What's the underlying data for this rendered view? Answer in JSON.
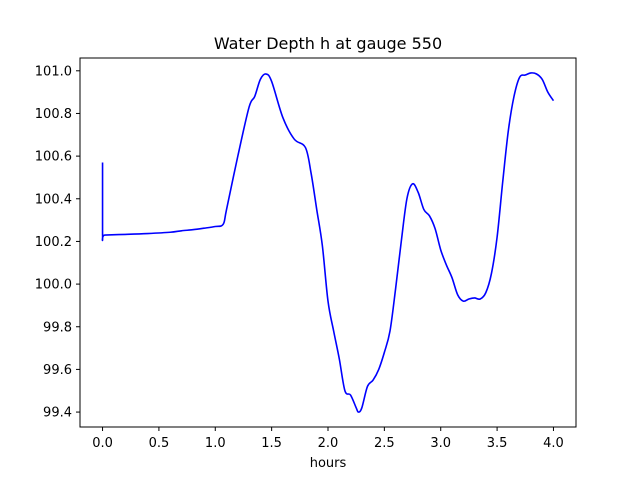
{
  "chart_data": {
    "type": "line",
    "title": "Water Depth h at gauge 550",
    "xlabel": "hours",
    "ylabel": "",
    "xlim": [
      -0.2,
      4.2
    ],
    "ylim": [
      99.33,
      101.06
    ],
    "x_ticks": [
      0.0,
      0.5,
      1.0,
      1.5,
      2.0,
      2.5,
      3.0,
      3.5,
      4.0
    ],
    "x_tick_labels": [
      "0.0",
      "0.5",
      "1.0",
      "1.5",
      "2.0",
      "2.5",
      "3.0",
      "3.5",
      "4.0"
    ],
    "y_ticks": [
      99.4,
      99.6,
      99.8,
      100.0,
      100.2,
      100.4,
      100.6,
      100.8,
      101.0
    ],
    "y_tick_labels": [
      "99.4",
      "99.6",
      "99.8",
      "100.0",
      "100.2",
      "100.4",
      "100.6",
      "100.8",
      "101.0"
    ],
    "grid": false,
    "series": [
      {
        "color": "#0000ff",
        "x": [
          0.0,
          0.0,
          0.02,
          0.2,
          0.4,
          0.6,
          0.7,
          0.8,
          0.9,
          1.0,
          1.07,
          1.1,
          1.2,
          1.3,
          1.35,
          1.4,
          1.45,
          1.5,
          1.6,
          1.7,
          1.8,
          1.85,
          1.9,
          1.95,
          2.0,
          2.05,
          2.1,
          2.15,
          2.2,
          2.25,
          2.27,
          2.3,
          2.35,
          2.4,
          2.45,
          2.5,
          2.55,
          2.6,
          2.65,
          2.7,
          2.75,
          2.8,
          2.85,
          2.9,
          2.95,
          3.0,
          3.05,
          3.1,
          3.15,
          3.2,
          3.25,
          3.3,
          3.35,
          3.4,
          3.45,
          3.5,
          3.55,
          3.6,
          3.65,
          3.7,
          3.75,
          3.8,
          3.85,
          3.9,
          3.95,
          4.0
        ],
        "y": [
          100.57,
          100.23,
          100.23,
          100.233,
          100.237,
          100.243,
          100.25,
          100.255,
          100.262,
          100.27,
          100.28,
          100.35,
          100.6,
          100.83,
          100.88,
          100.96,
          100.985,
          100.95,
          100.78,
          100.68,
          100.64,
          100.52,
          100.35,
          100.18,
          99.92,
          99.78,
          99.65,
          99.5,
          99.48,
          99.42,
          99.4,
          99.42,
          99.52,
          99.55,
          99.6,
          99.68,
          99.78,
          99.98,
          100.2,
          100.4,
          100.47,
          100.43,
          100.35,
          100.32,
          100.26,
          100.16,
          100.09,
          100.03,
          99.95,
          99.92,
          99.93,
          99.935,
          99.93,
          99.96,
          100.05,
          100.22,
          100.48,
          100.72,
          100.88,
          100.97,
          100.98,
          100.99,
          100.985,
          100.96,
          100.9,
          100.86
        ]
      }
    ]
  }
}
